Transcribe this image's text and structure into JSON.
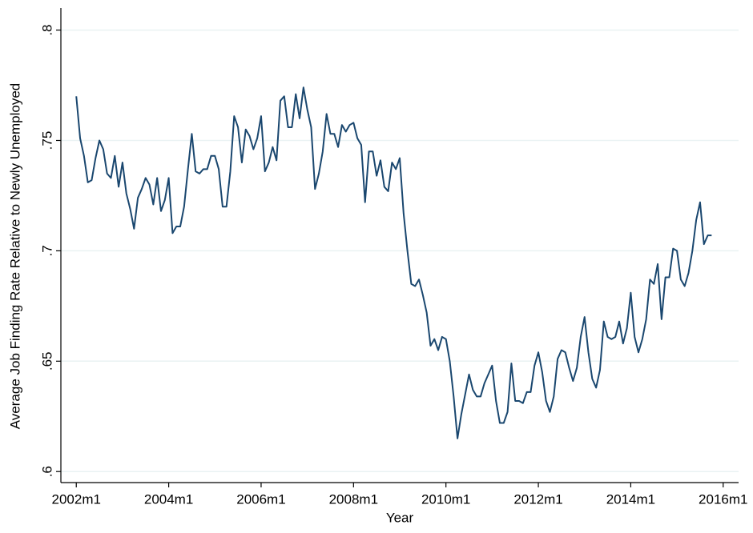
{
  "chart_data": {
    "type": "line",
    "y_label": "Average Job Finding Rate Relative to Newly Unemployed",
    "x_label": "Year",
    "x": [
      504,
      505,
      506,
      507,
      508,
      509,
      510,
      511,
      512,
      513,
      514,
      515,
      516,
      517,
      518,
      519,
      520,
      521,
      522,
      523,
      524,
      525,
      526,
      527,
      528,
      529,
      530,
      531,
      532,
      533,
      534,
      535,
      536,
      537,
      538,
      539,
      540,
      541,
      542,
      543,
      544,
      545,
      546,
      547,
      548,
      549,
      550,
      551,
      552,
      553,
      554,
      555,
      556,
      557,
      558,
      559,
      560,
      561,
      562,
      563,
      564,
      565,
      566,
      567,
      568,
      569,
      570,
      571,
      572,
      573,
      574,
      575,
      576,
      577,
      578,
      579,
      580,
      581,
      582,
      583,
      584,
      585,
      586,
      587,
      588,
      589,
      590,
      591,
      592,
      593,
      594,
      595,
      596,
      597,
      598,
      599,
      600,
      601,
      602,
      603,
      604,
      605,
      606,
      607,
      608,
      609,
      610,
      611,
      612,
      613,
      614,
      615,
      616,
      617,
      618,
      619,
      620,
      621,
      622,
      623,
      624,
      625,
      626,
      627,
      628,
      629,
      630,
      631,
      632,
      633,
      634,
      635,
      636,
      637,
      638,
      639,
      640,
      641,
      642,
      643,
      644,
      645,
      646,
      647,
      648,
      649,
      650,
      651,
      652,
      653,
      654,
      655,
      656,
      657,
      658,
      659,
      660,
      661,
      662,
      663,
      664,
      665,
      666,
      667,
      668,
      669
    ],
    "series": [
      {
        "color": "#1a476f",
        "values": [
          0.77,
          0.751,
          0.743,
          0.731,
          0.732,
          0.742,
          0.75,
          0.746,
          0.735,
          0.733,
          0.743,
          0.729,
          0.74,
          0.726,
          0.719,
          0.71,
          0.724,
          0.728,
          0.733,
          0.73,
          0.721,
          0.733,
          0.718,
          0.723,
          0.733,
          0.708,
          0.711,
          0.711,
          0.72,
          0.737,
          0.753,
          0.736,
          0.735,
          0.737,
          0.737,
          0.743,
          0.743,
          0.737,
          0.72,
          0.72,
          0.736,
          0.761,
          0.756,
          0.74,
          0.755,
          0.752,
          0.746,
          0.751,
          0.761,
          0.736,
          0.74,
          0.747,
          0.741,
          0.768,
          0.77,
          0.756,
          0.756,
          0.771,
          0.76,
          0.774,
          0.764,
          0.756,
          0.728,
          0.735,
          0.745,
          0.762,
          0.753,
          0.753,
          0.747,
          0.757,
          0.754,
          0.757,
          0.758,
          0.751,
          0.748,
          0.722,
          0.745,
          0.745,
          0.734,
          0.741,
          0.729,
          0.727,
          0.74,
          0.737,
          0.742,
          0.717,
          0.7,
          0.685,
          0.684,
          0.687,
          0.68,
          0.672,
          0.657,
          0.66,
          0.655,
          0.661,
          0.66,
          0.65,
          0.634,
          0.615,
          0.626,
          0.635,
          0.644,
          0.637,
          0.634,
          0.634,
          0.64,
          0.644,
          0.648,
          0.632,
          0.622,
          0.622,
          0.627,
          0.649,
          0.632,
          0.632,
          0.631,
          0.636,
          0.636,
          0.648,
          0.654,
          0.645,
          0.632,
          0.627,
          0.634,
          0.651,
          0.655,
          0.654,
          0.647,
          0.641,
          0.647,
          0.661,
          0.67,
          0.654,
          0.642,
          0.638,
          0.646,
          0.668,
          0.661,
          0.66,
          0.661,
          0.668,
          0.658,
          0.665,
          0.681,
          0.661,
          0.654,
          0.66,
          0.669,
          0.687,
          0.685,
          0.694,
          0.669,
          0.688,
          0.688,
          0.701,
          0.7,
          0.687,
          0.684,
          0.69,
          0.7,
          0.714,
          0.722,
          0.703,
          0.707,
          0.707
        ]
      }
    ],
    "xlim": [
      500,
      676
    ],
    "xticks": [
      {
        "value": 504,
        "label": "2002m1"
      },
      {
        "value": 528,
        "label": "2004m1"
      },
      {
        "value": 552,
        "label": "2006m1"
      },
      {
        "value": 576,
        "label": "2008m1"
      },
      {
        "value": 600,
        "label": "2010m1"
      },
      {
        "value": 624,
        "label": "2012m1"
      },
      {
        "value": 648,
        "label": "2014m1"
      },
      {
        "value": 672,
        "label": "2016m1"
      }
    ],
    "ylim": [
      0.595,
      0.81
    ],
    "yticks": [
      {
        "value": 0.6,
        "label": ".6"
      },
      {
        "value": 0.65,
        "label": ".65"
      },
      {
        "value": 0.7,
        "label": ".7"
      },
      {
        "value": 0.75,
        "label": ".75"
      },
      {
        "value": 0.8,
        "label": ".8"
      }
    ],
    "grid": true
  }
}
